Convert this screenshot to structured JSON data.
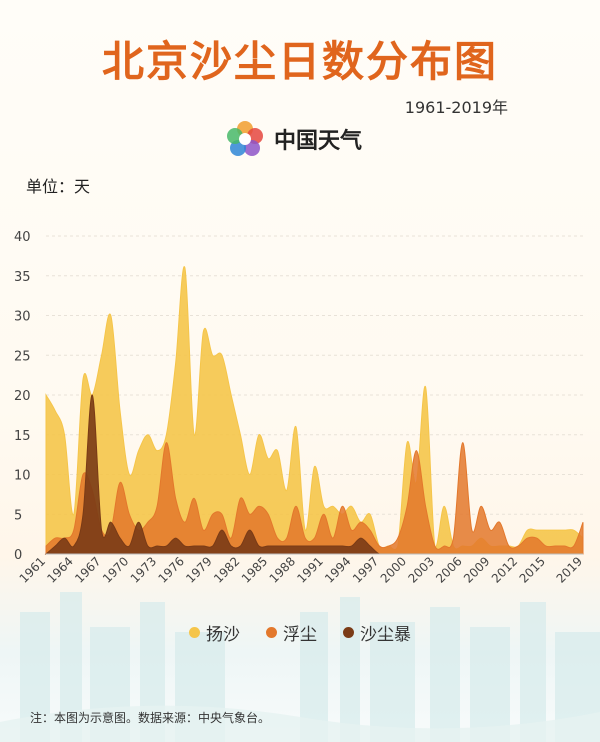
{
  "title": "北京沙尘日数分布图",
  "subtitle": "1961-2019年",
  "brand": {
    "name": "中国天气",
    "icon": "china-weather-logo-icon"
  },
  "unit_label": "单位：天",
  "footnote": "注：本图为示意图。数据来源：中央气象台。",
  "colors": {
    "yang_sha": "#f5c54a",
    "fu_chen": "#e3782c",
    "sha_chen_bao": "#7a3b16",
    "title": "#e0651d"
  },
  "chart_data": {
    "type": "area",
    "title": "北京沙尘日数分布图",
    "subtitle": "1961-2019年",
    "ylabel": "单位：天",
    "xlabel": "",
    "ylim": [
      0,
      40
    ],
    "yticks": [
      "0",
      "5",
      "10",
      "15",
      "20",
      "25",
      "30",
      "35",
      "40"
    ],
    "xtick_labels": [
      "1961",
      "1964",
      "1967",
      "1970",
      "1973",
      "1976",
      "1979",
      "1982",
      "1985",
      "1988",
      "1991",
      "1994",
      "1997",
      "2000",
      "2003",
      "2006",
      "2009",
      "2012",
      "2015",
      "2019"
    ],
    "grid": true,
    "legend_position": "bottom",
    "x": [
      1961,
      1962,
      1963,
      1964,
      1965,
      1966,
      1967,
      1968,
      1969,
      1970,
      1971,
      1972,
      1973,
      1974,
      1975,
      1976,
      1977,
      1978,
      1979,
      1980,
      1981,
      1982,
      1983,
      1984,
      1985,
      1986,
      1987,
      1988,
      1989,
      1990,
      1991,
      1992,
      1993,
      1994,
      1995,
      1996,
      1997,
      1998,
      1999,
      2000,
      2001,
      2002,
      2003,
      2004,
      2005,
      2006,
      2007,
      2008,
      2009,
      2010,
      2011,
      2012,
      2013,
      2014,
      2015,
      2016,
      2017,
      2018,
      2019
    ],
    "series": [
      {
        "name": "扬沙",
        "values": [
          20,
          18,
          15,
          5,
          22,
          20,
          25,
          30,
          18,
          10,
          13,
          15,
          13,
          15,
          24,
          36,
          15,
          28,
          25,
          25,
          20,
          15,
          10,
          15,
          12,
          13,
          8,
          16,
          3,
          11,
          6,
          6,
          5,
          6,
          4,
          5,
          1,
          1,
          1,
          14,
          9,
          21,
          1,
          6,
          1,
          1,
          1,
          2,
          1,
          1,
          1,
          1,
          3,
          3,
          3,
          3,
          3,
          3,
          2
        ]
      },
      {
        "name": "浮尘",
        "values": [
          1,
          2,
          2,
          3,
          10,
          8,
          3,
          3,
          9,
          5,
          3,
          4,
          6,
          14,
          7,
          4,
          7,
          3,
          5,
          5,
          2,
          7,
          5,
          6,
          5,
          2,
          2,
          6,
          2,
          2,
          5,
          2,
          6,
          3,
          4,
          3,
          1,
          1,
          2,
          6,
          13,
          6,
          1,
          1,
          2,
          14,
          3,
          6,
          3,
          4,
          1,
          1,
          2,
          2,
          1,
          1,
          1,
          1,
          4
        ]
      },
      {
        "name": "沙尘暴",
        "values": [
          0,
          1,
          2,
          1,
          5,
          20,
          3,
          4,
          2,
          1,
          4,
          1,
          1,
          1,
          2,
          1,
          1,
          1,
          1,
          3,
          1,
          1,
          3,
          1,
          1,
          1,
          1,
          1,
          1,
          1,
          1,
          1,
          1,
          1,
          2,
          1,
          0,
          0,
          0,
          0,
          0,
          0,
          0,
          0,
          0,
          0,
          0,
          0,
          0,
          0,
          0,
          0,
          0,
          0,
          0,
          0,
          0,
          0,
          0
        ]
      }
    ]
  }
}
